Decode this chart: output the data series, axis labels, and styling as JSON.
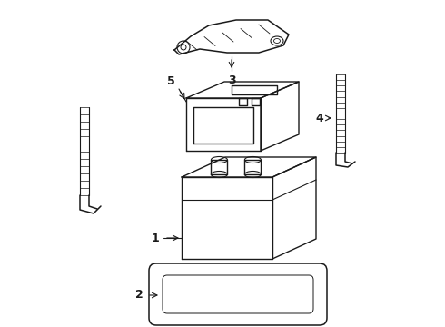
{
  "background_color": "#ffffff",
  "line_color": "#1a1a1a",
  "parts": {
    "battery_main": {
      "label": "1"
    },
    "tray": {
      "label": "2"
    },
    "bracket": {
      "label": "3"
    },
    "rod_right": {
      "label": "4"
    },
    "battery_small": {
      "label": "5"
    }
  },
  "figsize": [
    4.9,
    3.6
  ],
  "dpi": 100
}
